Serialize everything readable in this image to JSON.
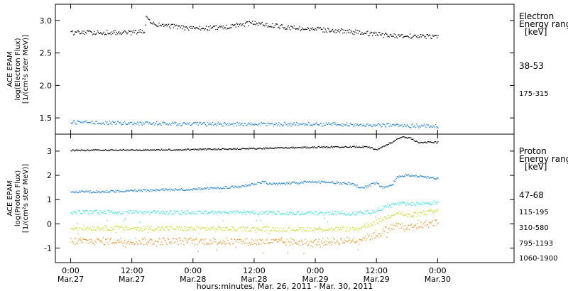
{
  "chart_data": [
    {
      "type": "scatter",
      "ylabel": [
        "ACE EPAM",
        "log(Electron Flux)",
        "[1/(cm²s ster MeV)]"
      ],
      "ylim": [
        1.25,
        3.25
      ],
      "yticks": [
        {
          "v": 1.5,
          "label": "1.5"
        },
        {
          "v": 2.0,
          "label": "2.0"
        },
        {
          "v": 2.5,
          "label": "2.5"
        },
        {
          "v": 3.0,
          "label": "3.0"
        }
      ],
      "legend": {
        "title": [
          "Electron",
          "Energy range",
          "[keV]"
        ],
        "entries": [
          {
            "label": "38-53",
            "color": "#000000"
          },
          {
            "label": "175-315",
            "color": "#1a7fd4"
          }
        ]
      },
      "series": [
        {
          "name": "38-53",
          "color": "#000000",
          "noise": 0.035,
          "points": [
            [
              0,
              2.82
            ],
            [
              12,
              2.82
            ],
            [
              14.5,
              2.84
            ],
            [
              14.7,
              3.05
            ],
            [
              16,
              2.95
            ],
            [
              24,
              2.88
            ],
            [
              30,
              2.9
            ],
            [
              36,
              2.97
            ],
            [
              42,
              2.9
            ],
            [
              54,
              2.84
            ],
            [
              63,
              2.77
            ],
            [
              72,
              2.76
            ]
          ]
        },
        {
          "name": "175-315",
          "color": "#1a7fd4",
          "noise": 0.03,
          "points": [
            [
              0,
              1.44
            ],
            [
              24,
              1.41
            ],
            [
              48,
              1.41
            ],
            [
              72,
              1.38
            ]
          ]
        }
      ]
    },
    {
      "type": "scatter",
      "ylabel": [
        "ACE EPAM",
        "log(Proton Flux)",
        "[1/(cm²s ster MeV)]"
      ],
      "ylim": [
        -1.6,
        3.7
      ],
      "yticks": [
        {
          "v": -1,
          "label": "-1"
        },
        {
          "v": 0,
          "label": "0"
        },
        {
          "v": 1,
          "label": "1"
        },
        {
          "v": 2,
          "label": "2"
        },
        {
          "v": 3,
          "label": "3"
        }
      ],
      "legend": {
        "title": [
          "Proton",
          "Energy range",
          "[keV]"
        ],
        "entries": [
          {
            "label": "47-68",
            "color": "#000000"
          },
          {
            "label": "115-195",
            "color": "#1a7fd4"
          },
          {
            "label": "310-580",
            "color": "#2ee8d8"
          },
          {
            "label": "795-1193",
            "color": "#c8dc1e"
          },
          {
            "label": "1060-1900",
            "color": "#f0901e"
          }
        ]
      },
      "series": [
        {
          "name": "47-68",
          "color": "#000000",
          "noise": 0.03,
          "points": [
            [
              0,
              3.05
            ],
            [
              20,
              3.07
            ],
            [
              36,
              3.12
            ],
            [
              48,
              3.18
            ],
            [
              58,
              3.2
            ],
            [
              60,
              3.08
            ],
            [
              63,
              3.38
            ],
            [
              65,
              3.62
            ],
            [
              67,
              3.52
            ],
            [
              68,
              3.38
            ],
            [
              72,
              3.38
            ]
          ]
        },
        {
          "name": "115-195",
          "color": "#1a7fd4",
          "noise": 0.05,
          "points": [
            [
              0,
              1.32
            ],
            [
              12,
              1.38
            ],
            [
              24,
              1.45
            ],
            [
              33,
              1.55
            ],
            [
              38,
              1.75
            ],
            [
              39,
              1.65
            ],
            [
              48,
              1.75
            ],
            [
              55,
              1.68
            ],
            [
              57,
              1.5
            ],
            [
              60,
              1.7
            ],
            [
              61,
              1.5
            ],
            [
              63,
              1.6
            ],
            [
              64,
              1.95
            ],
            [
              66,
              2.05
            ],
            [
              68,
              1.98
            ],
            [
              72,
              1.9
            ]
          ]
        },
        {
          "name": "310-580",
          "color": "#2ee8d8",
          "noise": 0.08,
          "points": [
            [
              0,
              0.5
            ],
            [
              36,
              0.48
            ],
            [
              56,
              0.45
            ],
            [
              60,
              0.55
            ],
            [
              62,
              0.75
            ],
            [
              64,
              0.85
            ],
            [
              66,
              0.82
            ],
            [
              72,
              0.9
            ]
          ]
        },
        {
          "name": "795-1193",
          "color": "#c8dc1e",
          "noise": 0.1,
          "points": [
            [
              0,
              -0.15
            ],
            [
              36,
              -0.2
            ],
            [
              56,
              -0.2
            ],
            [
              60,
              0.1
            ],
            [
              62,
              0.3
            ],
            [
              64,
              0.5
            ],
            [
              66,
              0.35
            ],
            [
              72,
              0.55
            ]
          ]
        },
        {
          "name": "1060-1900",
          "color": "#f0901e",
          "noise": 0.15,
          "points": [
            [
              0,
              -0.7
            ],
            [
              24,
              -0.7
            ],
            [
              48,
              -0.75
            ],
            [
              56,
              -0.65
            ],
            [
              60,
              -0.45
            ],
            [
              62,
              -0.2
            ],
            [
              64,
              -0.05
            ],
            [
              66,
              -0.15
            ],
            [
              72,
              0.1
            ]
          ]
        }
      ]
    }
  ],
  "x_axis": {
    "range_hours": [
      -3,
      87
    ],
    "ticks": [
      {
        "t": 0,
        "time": "0:00",
        "date": "Mar.27"
      },
      {
        "t": 12,
        "time": "12:00",
        "date": "Mar.27"
      },
      {
        "t": 24,
        "time": "0:00",
        "date": "Mar.28"
      },
      {
        "t": 36,
        "time": "12:00",
        "date": "Mar.28"
      },
      {
        "t": 48,
        "time": "0:00",
        "date": "Mar.29"
      },
      {
        "t": 60,
        "time": "12:00",
        "date": "Mar.29"
      },
      {
        "t": 72,
        "time": "0:00",
        "date": "Mar.30"
      }
    ],
    "xlabel": "hours:minutes, Mar. 26, 2011 - Mar. 30, 2011"
  }
}
